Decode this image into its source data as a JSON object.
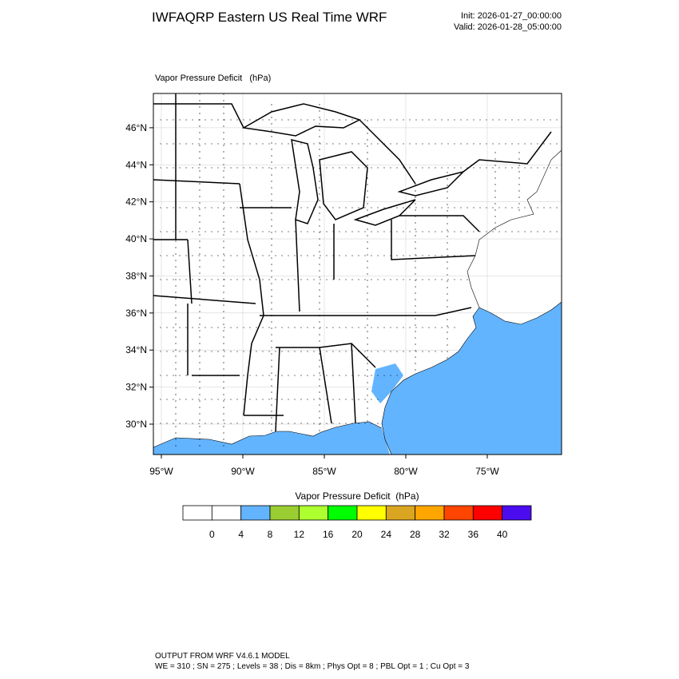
{
  "header": {
    "title": "IWFAQRP Eastern US Real Time WRF",
    "init": "Init: 2026-01-27_00:00:00",
    "valid": "Valid: 2026-01-28_05:00:00"
  },
  "map": {
    "subtitle": "Vapor Pressure Deficit   (hPa)",
    "lat_range": [
      28.36,
      47.85
    ],
    "lon_range": [
      -95.49,
      -70.44
    ],
    "lat_ticks": [
      {
        "value": 30,
        "label": "30°N"
      },
      {
        "value": 32,
        "label": "32°N"
      },
      {
        "value": 34,
        "label": "34°N"
      },
      {
        "value": 36,
        "label": "36°N"
      },
      {
        "value": 38,
        "label": "38°N"
      },
      {
        "value": 40,
        "label": "40°N"
      },
      {
        "value": 42,
        "label": "42°N"
      },
      {
        "value": 44,
        "label": "44°N"
      },
      {
        "value": 46,
        "label": "46°N"
      }
    ],
    "lon_ticks": [
      {
        "value": -95,
        "label": "95°W"
      },
      {
        "value": -90,
        "label": "90°W"
      },
      {
        "value": -85,
        "label": "85°W"
      },
      {
        "value": -80,
        "label": "80°W"
      },
      {
        "value": -75,
        "label": "75°W"
      }
    ]
  },
  "colorbar": {
    "title": "Vapor Pressure Deficit  (hPa)",
    "levels": [
      0,
      4,
      8,
      12,
      16,
      20,
      24,
      28,
      32,
      36,
      40
    ],
    "colors": [
      "#ffffff",
      "#ffffff",
      "#63b4ff",
      "#9acd32",
      "#adff2f",
      "#00ff00",
      "#ffff00",
      "#daa520",
      "#ffa500",
      "#ff4500",
      "#ff0000",
      "#4b0cf0"
    ]
  },
  "footer": {
    "line1": "OUTPUT FROM WRF V4.6.1 MODEL",
    "line2": "WE = 310 ; SN = 275 ; Levels = 38 ; Dis = 8km ; Phys Opt = 8 ; PBL Opt = 1 ; Cu Opt = 3"
  }
}
